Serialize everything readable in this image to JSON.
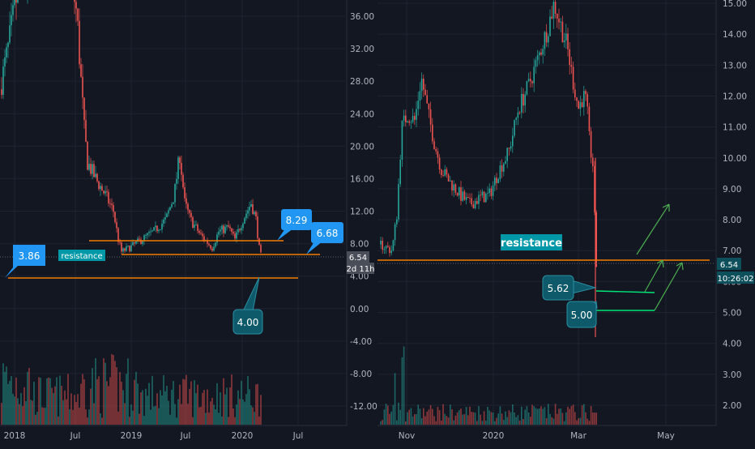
{
  "theme": {
    "background": "#131722",
    "grid": "#1f2330",
    "axis_text": "#b2b5be",
    "up": "#26a69a",
    "down": "#ef5350",
    "wick": "#787b86",
    "orange": "#f57c00",
    "callout_blue": "#2196f3",
    "callout_teal": "#0e5a6b",
    "label_cyan": "#00bcd4",
    "arrow_green": "#4caf50",
    "green_line": "#00e676"
  },
  "left_chart": {
    "price_ticks": [
      "36.00",
      "32.00",
      "28.00",
      "24.00",
      "20.00",
      "16.00",
      "12.00",
      "8.00",
      "4.00",
      "0.00",
      "-4.00",
      "-8.00",
      "-12.00"
    ],
    "time_ticks": [
      "2018",
      "Jul",
      "2019",
      "Jul",
      "2020",
      "Jul"
    ],
    "last_price_label": "6.54",
    "countdown_label": "2d 11h",
    "resistance_label": "resistance",
    "callouts": {
      "low_left": "3.86",
      "upper": "8.29",
      "right": "6.68",
      "bottom": "4.00"
    }
  },
  "right_chart": {
    "price_ticks": [
      "15.00",
      "14.00",
      "13.00",
      "12.00",
      "11.00",
      "10.00",
      "9.00",
      "8.00",
      "7.00",
      "6.00",
      "5.00",
      "4.00",
      "3.00",
      "2.00"
    ],
    "time_ticks": [
      "Nov",
      "2020",
      "Mar",
      "May"
    ],
    "last_price_label": "6.54",
    "countdown_label": "10:26:02",
    "resistance_label": "resistance",
    "callouts": {
      "first": "5.62",
      "second": "5.00"
    }
  },
  "chart_data": [
    {
      "type": "candlestick",
      "title": "",
      "x_ticks": [
        "2018",
        "Jul",
        "2019",
        "Jul",
        "2020",
        "Jul"
      ],
      "ylim": [
        -14,
        38
      ],
      "y_ticks": [
        36,
        32,
        28,
        24,
        20,
        16,
        12,
        8,
        4,
        0,
        -4,
        -8,
        -12
      ],
      "last_price": 6.54,
      "series": [
        {
          "x": [
            "2018",
            "Jul",
            "2019",
            "Jul",
            "2020"
          ],
          "close": [
            30,
            38,
            8,
            12,
            6.54
          ]
        }
      ],
      "horizontal_levels": [
        8.29,
        6.68,
        3.86
      ],
      "annotations": [
        "3.86",
        "8.29",
        "6.68",
        "4.00",
        "resistance"
      ]
    },
    {
      "type": "candlestick",
      "title": "",
      "x_ticks": [
        "Nov",
        "2020",
        "Mar",
        "May"
      ],
      "ylim": [
        1.4,
        15.2
      ],
      "y_ticks": [
        15,
        14,
        13,
        12,
        11,
        10,
        9,
        8,
        7,
        6,
        5,
        4,
        3,
        2
      ],
      "last_price": 6.54,
      "series": [
        {
          "x": [
            "Nov",
            "2020",
            "Mar"
          ],
          "close": [
            7.0,
            8.8,
            6.54
          ]
        }
      ],
      "horizontal_levels": [
        6.68,
        5.62,
        5.0
      ],
      "annotations": [
        "5.62",
        "5.00",
        "resistance"
      ]
    }
  ]
}
